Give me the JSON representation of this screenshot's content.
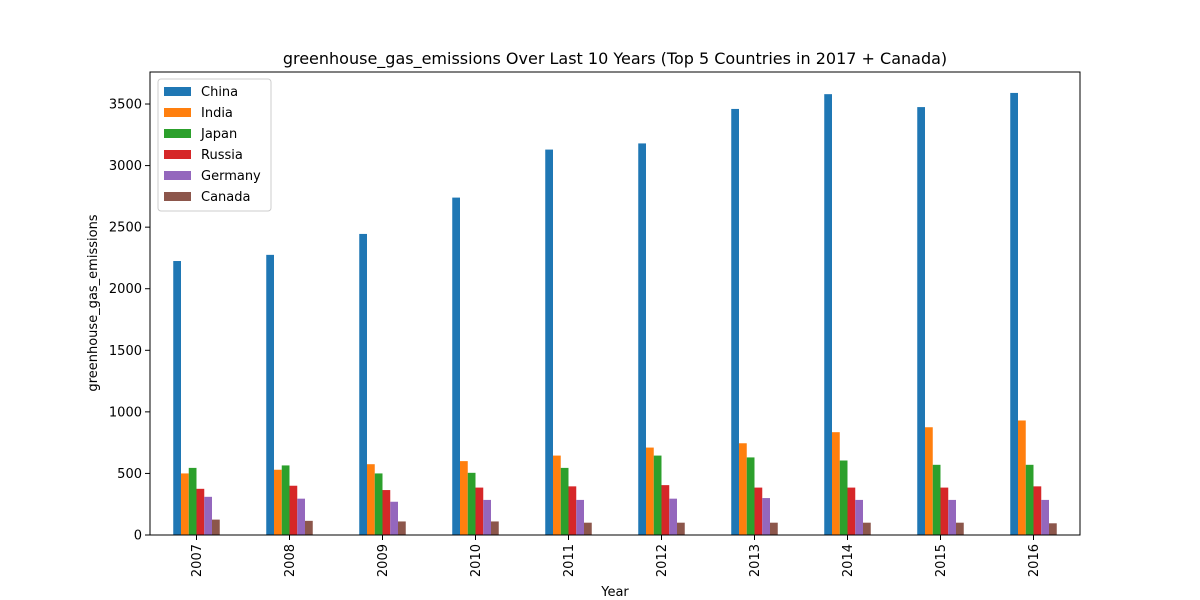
{
  "chart_data": {
    "type": "bar",
    "title": "greenhouse_gas_emissions Over Last 10 Years (Top 5 Countries in 2017 + Canada)",
    "xlabel": "Year",
    "ylabel": "greenhouse_gas_emissions",
    "ylim": [
      0,
      3760
    ],
    "yticks": [
      0,
      500,
      1000,
      1500,
      2000,
      2500,
      3000,
      3500
    ],
    "categories": [
      "2007",
      "2008",
      "2009",
      "2010",
      "2011",
      "2012",
      "2013",
      "2014",
      "2015",
      "2016"
    ],
    "legend_position": "top-left",
    "grid": false,
    "series": [
      {
        "name": "China",
        "color": "#1f77b4",
        "values": [
          2225,
          2275,
          2445,
          2740,
          3130,
          3180,
          3460,
          3580,
          3475,
          3590
        ]
      },
      {
        "name": "India",
        "color": "#ff7f0e",
        "values": [
          500,
          530,
          575,
          600,
          645,
          710,
          745,
          835,
          875,
          930
        ]
      },
      {
        "name": "Japan",
        "color": "#2ca02c",
        "values": [
          545,
          565,
          500,
          505,
          545,
          645,
          630,
          605,
          570,
          570
        ]
      },
      {
        "name": "Russia",
        "color": "#d62728",
        "values": [
          375,
          400,
          365,
          385,
          395,
          405,
          385,
          385,
          385,
          395
        ]
      },
      {
        "name": "Germany",
        "color": "#9467bd",
        "values": [
          310,
          295,
          270,
          285,
          285,
          295,
          300,
          285,
          285,
          285
        ]
      },
      {
        "name": "Canada",
        "color": "#8c564b",
        "values": [
          125,
          115,
          110,
          110,
          100,
          100,
          100,
          100,
          100,
          95
        ]
      }
    ]
  }
}
